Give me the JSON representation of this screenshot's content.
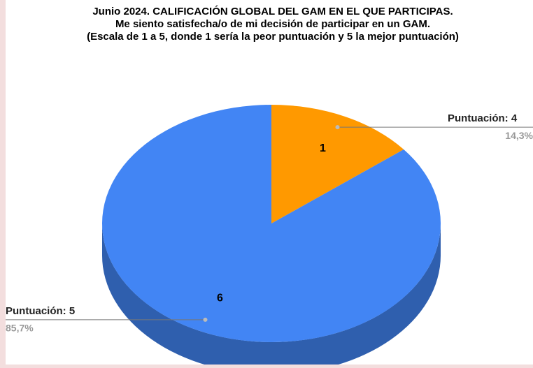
{
  "chart_data": {
    "type": "pie3d",
    "title": "Junio 2024. CALIFICACIÓN GLOBAL DEL GAM EN EL QUE PARTICIPAS.",
    "subtitle": [
      "Me siento satisfecha/o de mi decisión de participar en un GAM.",
      "(Escala de 1 a 5, donde 1 sería la peor puntuación y 5 la mejor puntuación)"
    ],
    "categories": [
      "Puntuación: 4",
      "Puntuación: 5"
    ],
    "values": [
      1,
      6
    ],
    "percentages": [
      14.3,
      85.7
    ],
    "percentage_labels": [
      "14,3%",
      "85,7%"
    ],
    "colors": [
      "#ff9900",
      "#4285f4"
    ],
    "side_colors": [
      "#c77800",
      "#2f5fae"
    ]
  }
}
